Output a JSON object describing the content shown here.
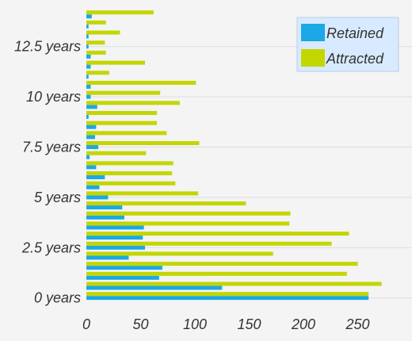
{
  "chart_data": {
    "type": "bar",
    "orientation": "horizontal",
    "title": "",
    "xlabel": "",
    "ylabel": "",
    "xlim": [
      0,
      300
    ],
    "ylim": [
      -0.25,
      14.5
    ],
    "x_ticks": [
      {
        "value": 0,
        "label": "0"
      },
      {
        "value": 50,
        "label": "50"
      },
      {
        "value": 100,
        "label": "100"
      },
      {
        "value": 150,
        "label": "150"
      },
      {
        "value": 200,
        "label": "200"
      },
      {
        "value": 250,
        "label": "250"
      }
    ],
    "y_ticks": [
      {
        "value": 0,
        "label": "0 years"
      },
      {
        "value": 2.5,
        "label": "2.5 years"
      },
      {
        "value": 5,
        "label": "5 years"
      },
      {
        "value": 7.5,
        "label": "7.5 years"
      },
      {
        "value": 10,
        "label": "10 years"
      },
      {
        "value": 12.5,
        "label": "12.5 years"
      }
    ],
    "grid": true,
    "legend_position": "top-right",
    "categories": [
      0,
      0.5,
      1,
      1.5,
      2,
      2.5,
      3,
      3.5,
      4,
      4.5,
      5,
      5.5,
      6,
      6.5,
      7,
      7.5,
      8,
      8.5,
      9,
      9.5,
      10,
      10.5,
      11,
      11.5,
      12,
      12.5,
      13,
      13.5,
      14
    ],
    "series": [
      {
        "name": "Retained",
        "color": "#1ba8e4",
        "values": [
          260,
          125,
          67,
          70,
          39,
          54,
          52,
          53,
          35,
          33,
          20,
          12,
          17,
          9,
          3,
          11,
          8,
          9,
          2,
          10,
          4,
          4,
          2,
          4,
          4,
          2,
          2,
          2,
          5
        ]
      },
      {
        "name": "Attracted",
        "color": "#c3d600",
        "values": [
          260,
          272,
          240,
          250,
          172,
          226,
          242,
          187,
          188,
          147,
          103,
          82,
          79,
          80,
          55,
          104,
          74,
          65,
          65,
          86,
          68,
          101,
          21,
          54,
          18,
          17,
          31,
          18,
          62
        ]
      }
    ]
  }
}
